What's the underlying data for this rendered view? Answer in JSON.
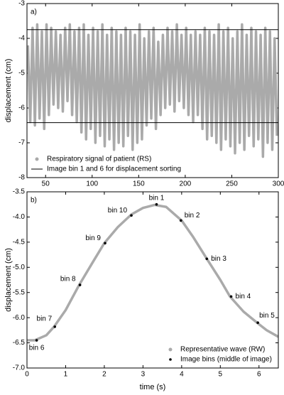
{
  "chart_data": [
    {
      "type": "line",
      "panel_label": "a)",
      "ylabel": "displacement (cm)",
      "xlim": [
        30,
        300
      ],
      "ylim": [
        -8,
        -3
      ],
      "xticks": [
        50,
        100,
        150,
        200,
        250,
        300
      ],
      "yticks": [
        -3,
        -4,
        -5,
        -6,
        -7,
        -8
      ],
      "legend": "lower left",
      "series": [
        {
          "name": "Respiratory signal of patient (RS)",
          "color": "#aaaaaa",
          "style": "line",
          "x": [
            31,
            33.5,
            36,
            38.5,
            41,
            43.5,
            46,
            48.5,
            51,
            53.5,
            56,
            58.5,
            61,
            63.5,
            66,
            68.5,
            71,
            73.5,
            76,
            78.5,
            81,
            83.5,
            86,
            88.5,
            91,
            93.5,
            96,
            98.5,
            101,
            103.5,
            106,
            108.5,
            111,
            113.5,
            116,
            118.5,
            121,
            123.5,
            126,
            128.5,
            131,
            133.5,
            136,
            138.5,
            141,
            143.5,
            146,
            148.5,
            151,
            153.5,
            156,
            158.5,
            161,
            163.5,
            166,
            168.5,
            171,
            173.5,
            176,
            178.5,
            181,
            183.5,
            186,
            188.5,
            191,
            193.5,
            196,
            198.5,
            201,
            203.5,
            206,
            208.5,
            211,
            213.5,
            216,
            218.5,
            221,
            223.5,
            226,
            228.5,
            231,
            233.5,
            236,
            238.5,
            241,
            243.5,
            246,
            248.5,
            251,
            253.5,
            256,
            258.5,
            261,
            263.5,
            266,
            268.5,
            271,
            273.5,
            276,
            278.5,
            281,
            283.5,
            286,
            288.5,
            291,
            293.5,
            296,
            298.5
          ],
          "values": [
            -4.2,
            -6.4,
            -3.7,
            -6.5,
            -3.6,
            -6.3,
            -3.8,
            -6.6,
            -3.6,
            -6.2,
            -3.7,
            -5.9,
            -3.8,
            -6.0,
            -3.9,
            -6.1,
            -3.7,
            -5.8,
            -3.6,
            -6.2,
            -3.8,
            -6.4,
            -3.7,
            -6.7,
            -3.6,
            -6.9,
            -3.9,
            -6.6,
            -3.7,
            -7.0,
            -3.8,
            -6.8,
            -3.6,
            -7.1,
            -3.9,
            -6.9,
            -3.7,
            -7.2,
            -3.8,
            -7.0,
            -3.9,
            -7.1,
            -3.7,
            -6.8,
            -3.8,
            -7.2,
            -3.9,
            -7.0,
            -3.6,
            -6.9,
            -4.0,
            -6.5,
            -3.8,
            -6.3,
            -3.7,
            -6.6,
            -4.1,
            -6.2,
            -3.9,
            -6.0,
            -3.7,
            -5.9,
            -3.8,
            -6.1,
            -3.6,
            -5.8,
            -3.9,
            -6.0,
            -3.7,
            -6.2,
            -3.9,
            -6.4,
            -3.8,
            -6.2,
            -3.9,
            -6.6,
            -3.7,
            -6.9,
            -3.8,
            -6.8,
            -3.9,
            -7.0,
            -3.6,
            -7.2,
            -3.8,
            -6.9,
            -3.7,
            -7.1,
            -4.0,
            -7.3,
            -3.8,
            -7.0,
            -3.6,
            -7.2,
            -3.9,
            -6.8,
            -3.7,
            -7.1,
            -3.8,
            -6.9,
            -3.9,
            -7.4,
            -3.7,
            -7.0,
            -3.8,
            -7.2,
            -4.0,
            -6.8
          ]
        }
      ],
      "hlines": {
        "name": "Image bin 1 and 6 for displacement sorting",
        "color": "#000000",
        "values": [
          -3.75,
          -6.42
        ]
      }
    },
    {
      "type": "line",
      "panel_label": "b)",
      "xlabel": "time (s)",
      "ylabel": "displacement (cm)",
      "xlim": [
        0,
        6.5
      ],
      "ylim": [
        -7,
        -3.5
      ],
      "xticks": [
        0,
        1,
        2,
        3,
        4,
        5,
        6
      ],
      "yticks": [
        -3.5,
        {
          "value": -4,
          "label": "-4.0"
        },
        -4.5,
        {
          "value": -5,
          "label": "-5.0"
        },
        -5.5,
        {
          "value": -6,
          "label": "-6.0"
        },
        -6.5,
        {
          "value": -7,
          "label": "-7.0"
        }
      ],
      "legend": "lower right",
      "series": [
        {
          "name": "Representative wave (RW)",
          "color": "#aaaaaa",
          "style": "line",
          "x": [
            0,
            0.2,
            0.5,
            0.7,
            1,
            1.35,
            1.7,
            2,
            2.35,
            2.7,
            3,
            3.3,
            3.6,
            4,
            4.3,
            4.65,
            5,
            5.25,
            5.6,
            5.95,
            6.2,
            6.5
          ],
          "values": [
            -6.45,
            -6.45,
            -6.35,
            -6.18,
            -5.85,
            -5.35,
            -4.9,
            -4.52,
            -4.2,
            -3.95,
            -3.82,
            -3.76,
            -3.8,
            -4.07,
            -4.4,
            -4.83,
            -5.25,
            -5.58,
            -5.88,
            -6.1,
            -6.25,
            -6.38
          ]
        },
        {
          "name": "Image bins (middle of image)",
          "color": "#000000",
          "style": "points",
          "x": [
            3.35,
            3.98,
            4.65,
            5.28,
            5.97,
            0.25,
            0.72,
            1.37,
            2.02,
            2.7
          ],
          "values": [
            -3.75,
            -4.07,
            -4.83,
            -5.58,
            -6.1,
            -6.45,
            -6.18,
            -5.35,
            -4.52,
            -3.97
          ],
          "labels": [
            "bin 1",
            "bin 2",
            "bin 3",
            "bin 4",
            "bin 5",
            "bin 6",
            "bin 7",
            "bin 8",
            "bin 9",
            "bin 10"
          ]
        }
      ]
    }
  ]
}
